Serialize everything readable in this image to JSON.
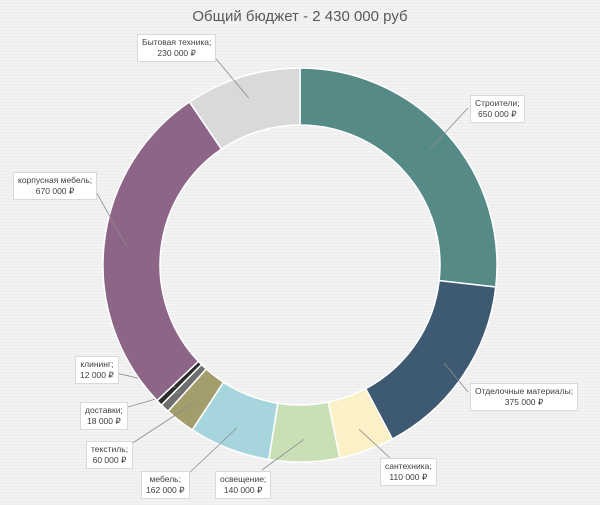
{
  "chart_data": {
    "type": "pie",
    "subtype": "donut",
    "title": "Общий бюджет - 2 430 000 руб",
    "series": [
      {
        "name": "Строители",
        "label": "Строители;",
        "value": 650000,
        "value_label": "650 000 ₽",
        "color": "#568a87"
      },
      {
        "name": "Отделочные материалы",
        "label": "Отделочные материалы;",
        "value": 375000,
        "value_label": "375 000 ₽",
        "color": "#3e5a73"
      },
      {
        "name": "сантехника",
        "label": "сантехника;",
        "value": 110000,
        "value_label": "110 000 ₽",
        "color": "#fbf0c6"
      },
      {
        "name": "освещение",
        "label": "освещение;",
        "value": 140000,
        "value_label": "140 000 ₽",
        "color": "#c9e0b6"
      },
      {
        "name": "мебель",
        "label": "мебель;",
        "value": 162000,
        "value_label": "162 000 ₽",
        "color": "#a6d5de"
      },
      {
        "name": "текстиль",
        "label": "текстиль;",
        "value": 60000,
        "value_label": "60 000 ₽",
        "color": "#a39d6c"
      },
      {
        "name": "доставки",
        "label": "доставки;",
        "value": 18000,
        "value_label": "18 000 ₽",
        "color": "#6f6f6f"
      },
      {
        "name": "клининг",
        "label": "клининг;",
        "value": 12000,
        "value_label": "12 000 ₽",
        "color": "#2c2c2c"
      },
      {
        "name": "корпусная мебель",
        "label": "корпусная мебель;",
        "value": 670000,
        "value_label": "670 000 ₽",
        "color": "#8c6587"
      },
      {
        "name": "Бытовая техника",
        "label": "Бытовая техника;",
        "value": 230000,
        "value_label": "230 000 ₽",
        "color": "#d9d9d9"
      }
    ],
    "legend": "none",
    "data_labels": "outside with leader lines"
  }
}
